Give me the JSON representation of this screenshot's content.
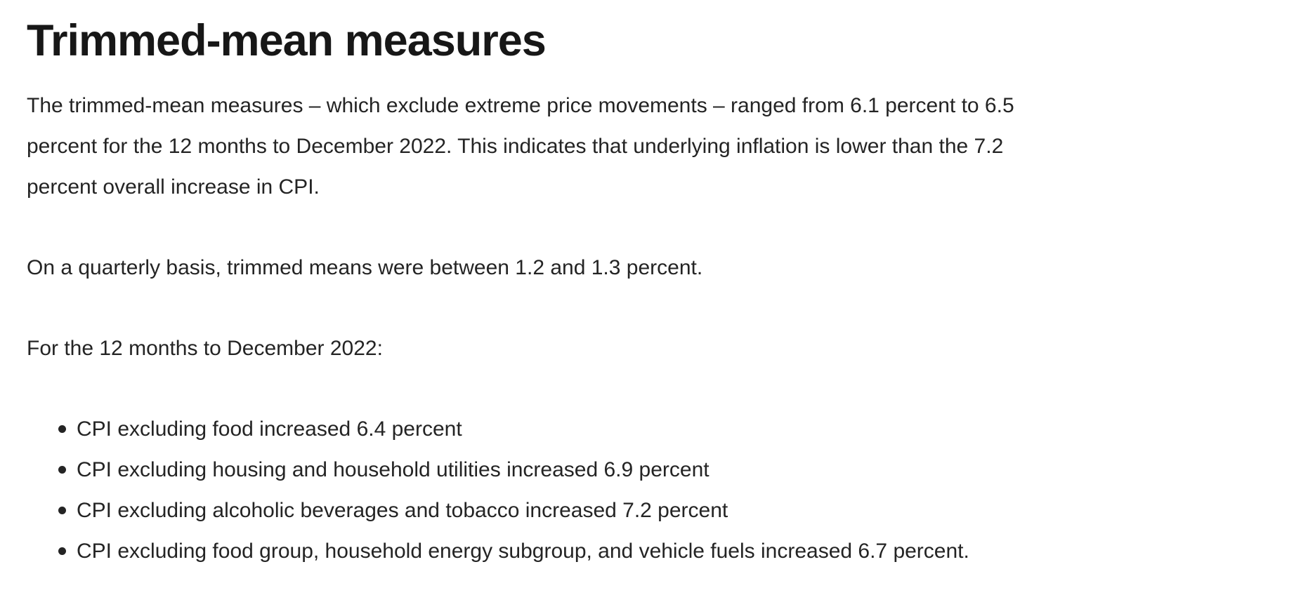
{
  "page": {
    "heading": "Trimmed-mean measures",
    "paragraphs": [
      "The trimmed-mean measures – which exclude extreme price movements – ranged from 6.1 percent to 6.5 percent for the 12 months to December 2022. This indicates that underlying inflation is lower than the 7.2 percent overall increase in CPI.",
      "On a quarterly basis, trimmed means were between 1.2 and 1.3 percent.",
      "For the 12 months to December 2022:"
    ],
    "list_items": [
      "CPI excluding food increased 6.4 percent",
      "CPI excluding housing and household utilities increased 6.9 percent",
      "CPI excluding alcoholic beverages and tobacco increased 7.2 percent",
      "CPI excluding food group, household energy subgroup, and vehicle fuels increased 6.7 percent."
    ],
    "colors": {
      "heading": "#171717",
      "body": "#242424",
      "background": "#ffffff"
    }
  }
}
